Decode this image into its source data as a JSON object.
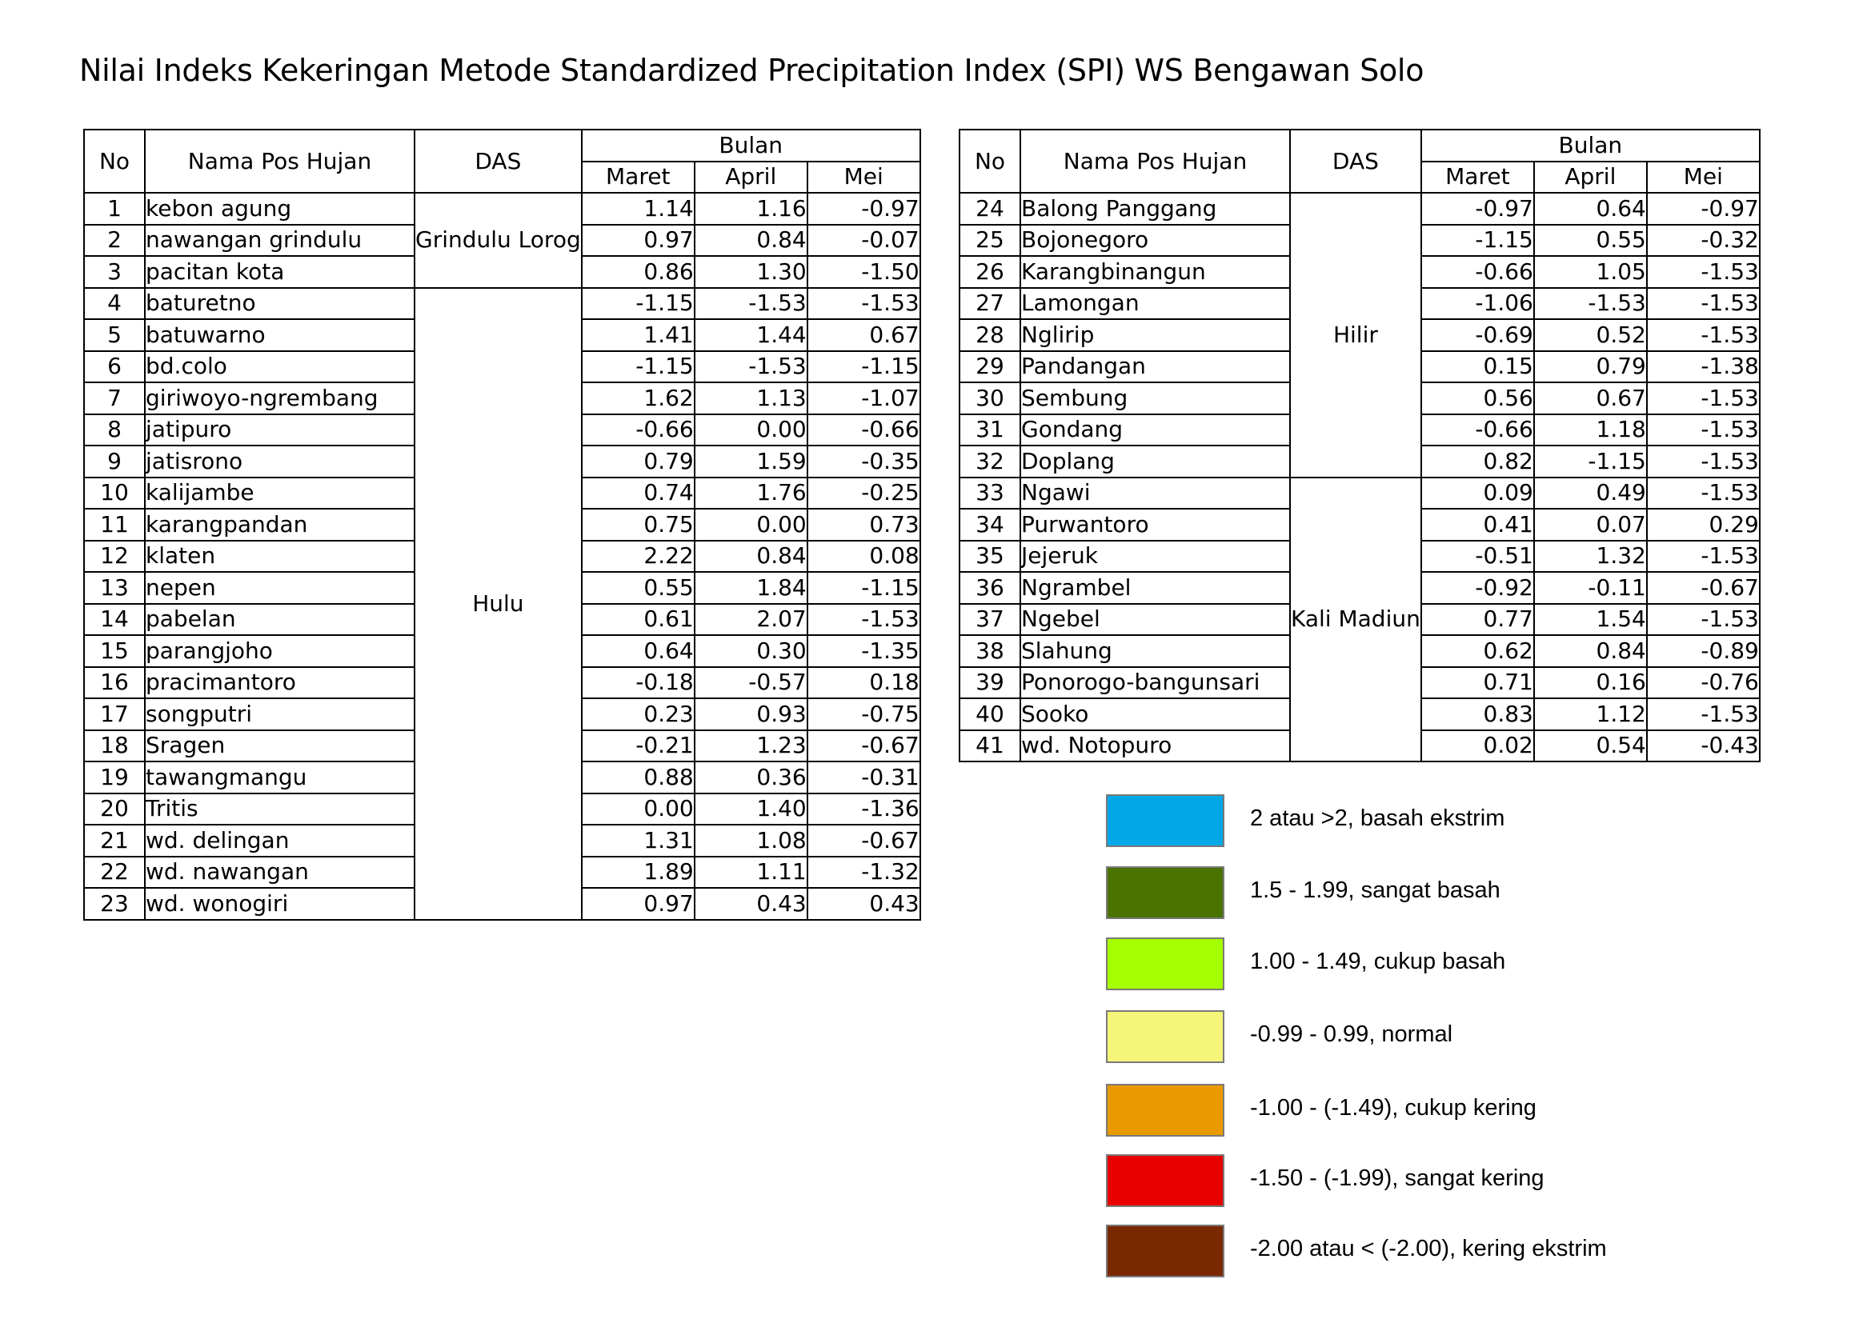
{
  "title": "Nilai Indeks Kekeringan Metode Standardized Precipitation Index (SPI) WS Bengawan Solo",
  "headers": {
    "no": "No",
    "name": "Nama Pos Hujan",
    "das": "DAS",
    "bulan": "Bulan",
    "months": [
      "Maret",
      "April",
      "Mei"
    ]
  },
  "table_left": {
    "das_groups": [
      {
        "label": "Grindulu Lorog",
        "rows": 3
      },
      {
        "label": "Hulu",
        "rows": 20
      }
    ],
    "rows": [
      {
        "no": "1",
        "name": "kebon agung",
        "maret": "1.14",
        "april": "1.16",
        "mei": "-0.97"
      },
      {
        "no": "2",
        "name": "nawangan grindulu",
        "maret": "0.97",
        "april": "0.84",
        "mei": "-0.07"
      },
      {
        "no": "3",
        "name": "pacitan kota",
        "maret": "0.86",
        "april": "1.30",
        "mei": "-1.50"
      },
      {
        "no": "4",
        "name": "baturetno",
        "maret": "-1.15",
        "april": "-1.53",
        "mei": "-1.53"
      },
      {
        "no": "5",
        "name": "batuwarno",
        "maret": "1.41",
        "april": "1.44",
        "mei": "0.67"
      },
      {
        "no": "6",
        "name": "bd.colo",
        "maret": "-1.15",
        "april": "-1.53",
        "mei": "-1.15"
      },
      {
        "no": "7",
        "name": "giriwoyo-ngrembang",
        "maret": "1.62",
        "april": "1.13",
        "mei": "-1.07"
      },
      {
        "no": "8",
        "name": "jatipuro",
        "maret": "-0.66",
        "april": "0.00",
        "mei": "-0.66"
      },
      {
        "no": "9",
        "name": "jatisrono",
        "maret": "0.79",
        "april": "1.59",
        "mei": "-0.35"
      },
      {
        "no": "10",
        "name": "kalijambe",
        "maret": "0.74",
        "april": "1.76",
        "mei": "-0.25"
      },
      {
        "no": "11",
        "name": "karangpandan",
        "maret": "0.75",
        "april": "0.00",
        "mei": "0.73"
      },
      {
        "no": "12",
        "name": "klaten",
        "maret": "2.22",
        "april": "0.84",
        "mei": "0.08"
      },
      {
        "no": "13",
        "name": "nepen",
        "maret": "0.55",
        "april": "1.84",
        "mei": "-1.15"
      },
      {
        "no": "14",
        "name": "pabelan",
        "maret": "0.61",
        "april": "2.07",
        "mei": "-1.53"
      },
      {
        "no": "15",
        "name": "parangjoho",
        "maret": "0.64",
        "april": "0.30",
        "mei": "-1.35"
      },
      {
        "no": "16",
        "name": "pracimantoro",
        "maret": "-0.18",
        "april": "-0.57",
        "mei": "0.18"
      },
      {
        "no": "17",
        "name": "songputri",
        "maret": "0.23",
        "april": "0.93",
        "mei": "-0.75"
      },
      {
        "no": "18",
        "name": "Sragen",
        "maret": "-0.21",
        "april": "1.23",
        "mei": "-0.67"
      },
      {
        "no": "19",
        "name": "tawangmangu",
        "maret": "0.88",
        "april": "0.36",
        "mei": "-0.31"
      },
      {
        "no": "20",
        "name": "Tritis",
        "maret": "0.00",
        "april": "1.40",
        "mei": "-1.36"
      },
      {
        "no": "21",
        "name": "wd. delingan",
        "maret": "1.31",
        "april": "1.08",
        "mei": "-0.67"
      },
      {
        "no": "22",
        "name": "wd. nawangan",
        "maret": "1.89",
        "april": "1.11",
        "mei": "-1.32"
      },
      {
        "no": "23",
        "name": "wd. wonogiri",
        "maret": "0.97",
        "april": "0.43",
        "mei": "0.43"
      }
    ]
  },
  "table_right": {
    "das_groups": [
      {
        "label": "Hilir",
        "rows": 9
      },
      {
        "label": "Kali Madiun",
        "rows": 9
      }
    ],
    "rows": [
      {
        "no": "24",
        "name": "Balong Panggang",
        "maret": "-0.97",
        "april": "0.64",
        "mei": "-0.97"
      },
      {
        "no": "25",
        "name": "Bojonegoro",
        "maret": "-1.15",
        "april": "0.55",
        "mei": "-0.32"
      },
      {
        "no": "26",
        "name": "Karangbinangun",
        "maret": "-0.66",
        "april": "1.05",
        "mei": "-1.53"
      },
      {
        "no": "27",
        "name": "Lamongan",
        "maret": "-1.06",
        "april": "-1.53",
        "mei": "-1.53"
      },
      {
        "no": "28",
        "name": "Nglirip",
        "maret": "-0.69",
        "april": "0.52",
        "mei": "-1.53"
      },
      {
        "no": "29",
        "name": "Pandangan",
        "maret": "0.15",
        "april": "0.79",
        "mei": "-1.38"
      },
      {
        "no": "30",
        "name": "Sembung",
        "maret": "0.56",
        "april": "0.67",
        "mei": "-1.53"
      },
      {
        "no": "31",
        "name": "Gondang",
        "maret": "-0.66",
        "april": "1.18",
        "mei": "-1.53"
      },
      {
        "no": "32",
        "name": "Doplang",
        "maret": "0.82",
        "april": "-1.15",
        "mei": "-1.53"
      },
      {
        "no": "33",
        "name": "Ngawi",
        "maret": "0.09",
        "april": "0.49",
        "mei": "-1.53"
      },
      {
        "no": "34",
        "name": "Purwantoro",
        "maret": "0.41",
        "april": "0.07",
        "mei": "0.29"
      },
      {
        "no": "35",
        "name": "Jejeruk",
        "maret": "-0.51",
        "april": "1.32",
        "mei": "-1.53"
      },
      {
        "no": "36",
        "name": "Ngrambel",
        "maret": "-0.92",
        "april": "-0.11",
        "mei": "-0.67"
      },
      {
        "no": "37",
        "name": "Ngebel",
        "maret": "0.77",
        "april": "1.54",
        "mei": "-1.53"
      },
      {
        "no": "38",
        "name": "Slahung",
        "maret": "0.62",
        "april": "0.84",
        "mei": "-0.89"
      },
      {
        "no": "39",
        "name": "Ponorogo-bangunsari",
        "maret": "0.71",
        "april": "0.16",
        "mei": "-0.76"
      },
      {
        "no": "40",
        "name": "Sooko",
        "maret": "0.83",
        "april": "1.12",
        "mei": "-1.53"
      },
      {
        "no": "41",
        "name": "wd. Notopuro",
        "maret": "0.02",
        "april": "0.54",
        "mei": "-0.43"
      }
    ]
  },
  "legend": [
    {
      "label": "2 atau >2, basah ekstrim",
      "color": "#00a8e8"
    },
    {
      "label": "1.5 - 1.99, sangat basah",
      "color": "#4a7300"
    },
    {
      "label": "1.00 - 1.49, cukup basah",
      "color": "#a6ff00"
    },
    {
      "label": "-0.99 - 0.99, normal",
      "color": "#f5f57a"
    },
    {
      "label": "-1.00 - (-1.49), cukup kering",
      "color": "#e89a00"
    },
    {
      "label": "-1.50 - (-1.99), sangat kering",
      "color": "#e80000"
    },
    {
      "label": "-2.00 atau < (-2.00), kering ekstrim",
      "color": "#7a2800"
    }
  ]
}
